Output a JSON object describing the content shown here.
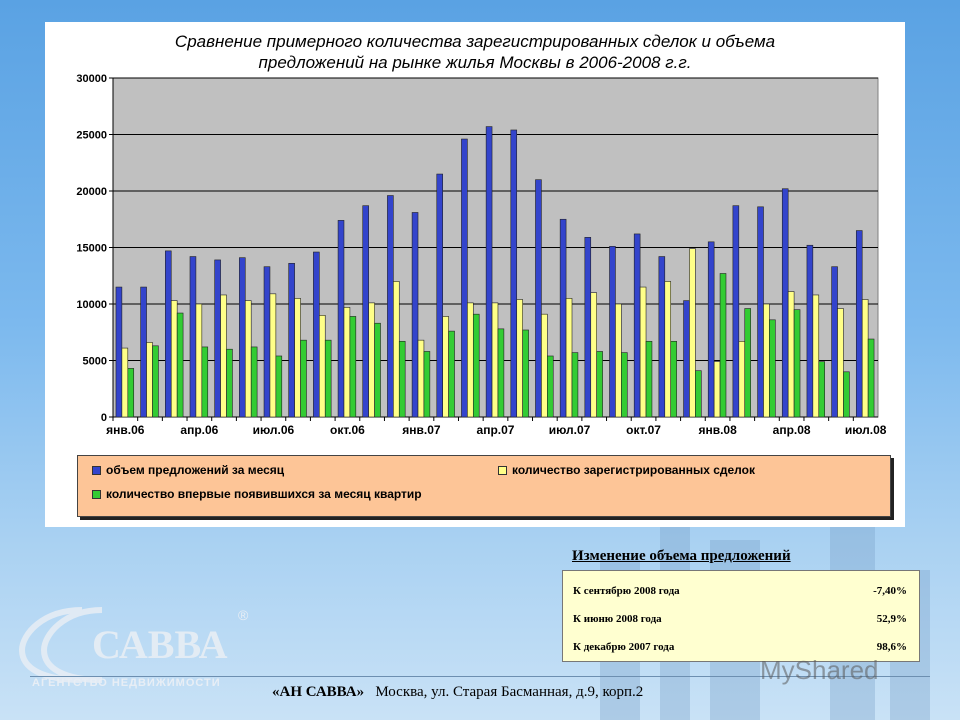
{
  "chart_data": {
    "type": "bar",
    "title_line1": "Сравнение примерного количества зарегистрированных сделок и объема",
    "title_line2": "предложений на рынке жилья Москвы в 2006-2008 г.г.",
    "ylim": [
      0,
      30000
    ],
    "yticks": [
      "0",
      "5000",
      "10000",
      "15000",
      "20000",
      "25000",
      "30000"
    ],
    "ytick_values": [
      0,
      5000,
      10000,
      15000,
      20000,
      25000,
      30000
    ],
    "xtick_labels": [
      "янв.06",
      "апр.06",
      "июл.06",
      "окт.06",
      "янв.07",
      "апр.07",
      "июл.07",
      "окт.07",
      "янв.08",
      "апр.08",
      "июл.08"
    ],
    "xtick_every": 3,
    "grid": true,
    "legend_placement": "bottom",
    "series": [
      {
        "name": "объем предложений за месяц",
        "color": "#3344cc",
        "values": [
          11500,
          11500,
          14700,
          14200,
          13900,
          14100,
          13300,
          13600,
          14600,
          17400,
          18700,
          19600,
          18100,
          21500,
          24600,
          25700,
          25400,
          21000,
          17500,
          15900,
          15100,
          16200,
          14200,
          10300,
          15500,
          18700,
          18600,
          20200,
          15200,
          13300,
          16500
        ]
      },
      {
        "name": "количество зарегистрированных сделок",
        "color": "#ffff88",
        "values": [
          6100,
          6600,
          10300,
          10000,
          10800,
          10300,
          10900,
          10500,
          9000,
          9700,
          10100,
          12000,
          6800,
          8900,
          10100,
          10100,
          10400,
          9100,
          10500,
          11000,
          10000,
          11500,
          12000,
          14900,
          4900,
          6700,
          10000,
          11100,
          10800,
          9600,
          10400
        ]
      },
      {
        "name": "количество впервые появившихся за месяц квартир",
        "color": "#33cc33",
        "values": [
          4300,
          6300,
          9200,
          6200,
          6000,
          6200,
          5400,
          6800,
          6800,
          8900,
          8300,
          6700,
          5800,
          7600,
          9100,
          7800,
          7700,
          5400,
          5700,
          5800,
          5700,
          6700,
          6700,
          4100,
          12700,
          9600,
          8600,
          9500,
          4900,
          4000,
          6900
        ]
      }
    ]
  },
  "summary": {
    "title": "Изменение объема предложений",
    "rows": [
      {
        "label": "К сентябрю 2008 года",
        "value": "-7,40%"
      },
      {
        "label": "К июню 2008 года",
        "value": "52,9%"
      },
      {
        "label": "К декабрю 2007 года",
        "value": "98,6%"
      }
    ]
  },
  "logo": {
    "name": "САВВА",
    "subtitle": "АГЕНТСТВО НЕДВИЖИМОСТИ",
    "registered": "®"
  },
  "footer": {
    "company": "«АН САВВА»",
    "address": "Москва, ул. Старая Басманная, д.9, корп.2"
  },
  "watermark": "MyShared"
}
